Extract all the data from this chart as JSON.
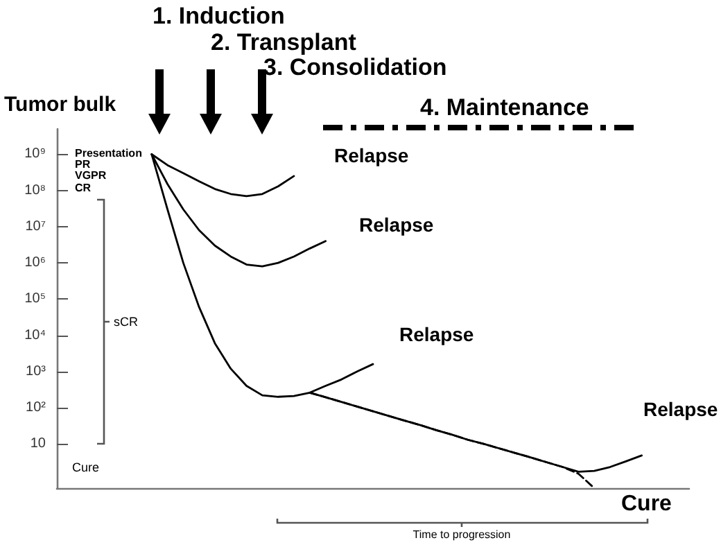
{
  "chart_data": {
    "type": "line",
    "ylabel": "Tumor bulk",
    "ylim": [
      0.6,
      5000000000
    ],
    "log": "y",
    "tick_labels": "y",
    "grid": false,
    "marker": "none",
    "line_style": "solid",
    "categories": [
      null,
      null,
      null,
      null,
      null,
      null,
      null,
      null,
      null,
      null,
      null,
      null,
      null,
      null,
      null,
      null,
      null,
      null,
      null,
      null,
      null,
      null,
      null,
      null,
      null,
      null,
      null,
      null,
      null,
      null,
      null,
      null,
      null,
      null,
      null,
      null,
      null,
      null,
      null,
      null,
      null
    ],
    "yticks": [
      10,
      {
        "value": 100,
        "label": "10²"
      },
      {
        "value": 1000,
        "label": "10³"
      },
      {
        "value": 10000,
        "label": "10⁴"
      },
      {
        "value": 100000,
        "label": "10⁵"
      },
      {
        "value": 1000000,
        "label": "10⁶"
      },
      {
        "value": 10000000,
        "label": "10⁷"
      },
      {
        "value": 100000000,
        "label": "10⁸"
      },
      {
        "value": 1000000000,
        "label": "10⁹"
      }
    ],
    "series": [
      {
        "color": "#000000",
        "values": [
          null,
          null,
          null,
          null,
          null,
          null,
          1000000000,
          500000000,
          300000000,
          180000000,
          110000000,
          80000000,
          70000000,
          80000000,
          130000000,
          250000000,
          null,
          null,
          null,
          null,
          null,
          null,
          null,
          null,
          null,
          null,
          null,
          null,
          null,
          null,
          null,
          null,
          null,
          null,
          null,
          null,
          null,
          null,
          null,
          null,
          null
        ]
      },
      {
        "color": "#000000",
        "values": [
          null,
          null,
          null,
          null,
          null,
          null,
          1000000000,
          150000000,
          30000000,
          8000000,
          3000000,
          1500000,
          900000,
          800000,
          1000000,
          1500000,
          2500000,
          4000000,
          null,
          null,
          null,
          null,
          null,
          null,
          null,
          null,
          null,
          null,
          null,
          null,
          null,
          null,
          null,
          null,
          null,
          null,
          null,
          null,
          null,
          null,
          null
        ]
      },
      {
        "color": "#000000",
        "values": [
          null,
          null,
          null,
          null,
          null,
          null,
          1000000000,
          30000000,
          1000000,
          60000,
          6000,
          1200,
          400,
          220,
          200,
          210,
          260,
          400,
          600,
          1000,
          1600,
          null,
          null,
          null,
          null,
          null,
          null,
          null,
          null,
          null,
          null,
          null,
          null,
          null,
          null,
          null,
          null,
          null,
          null,
          null,
          null
        ]
      },
      {
        "color": "#000000",
        "values": [
          null,
          null,
          null,
          null,
          null,
          null,
          null,
          null,
          null,
          null,
          null,
          null,
          null,
          null,
          null,
          null,
          260,
          195,
          145,
          107,
          80,
          59,
          44,
          33,
          24,
          18,
          13,
          10,
          7.5,
          5.6,
          4.2,
          3.1,
          2.3,
          1.7,
          1.8,
          2.3,
          3.3,
          4.8,
          null,
          null,
          null
        ]
      },
      {
        "color": "#000000",
        "line_style": "dashed",
        "values": [
          null,
          null,
          null,
          null,
          null,
          null,
          null,
          null,
          null,
          null,
          null,
          null,
          null,
          null,
          null,
          null,
          260,
          195,
          145,
          107,
          80,
          59,
          44,
          33,
          24,
          18,
          13,
          10,
          7.5,
          5.6,
          4.2,
          3.1,
          2.3,
          1.5,
          0.6,
          null,
          null,
          null,
          null,
          null,
          null
        ]
      }
    ],
    "annotations": [
      "1. Induction",
      "2. Transplant",
      "3. Consolidation",
      "4. Maintenance",
      "Relapse",
      "Relapse",
      "Relapse",
      "Relapse",
      "Presentation",
      "PR",
      "VGPR",
      "CR",
      "sCR",
      "Cure",
      "Cure",
      "Time to progression"
    ]
  }
}
